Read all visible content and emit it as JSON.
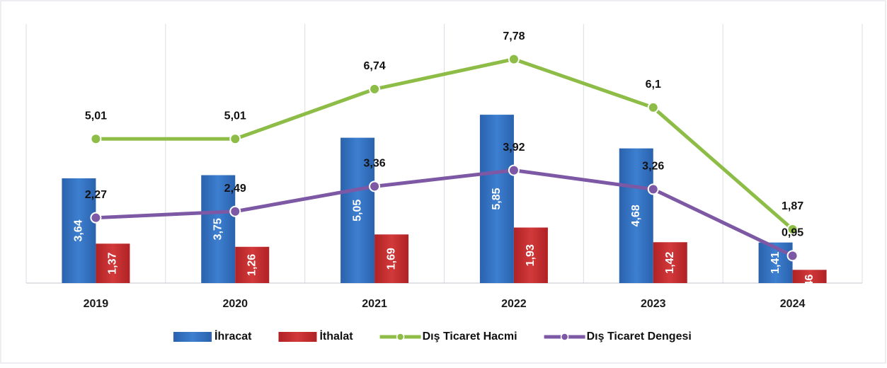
{
  "chart_data": {
    "type": "bar_line",
    "categories": [
      "2019",
      "2020",
      "2021",
      "2022",
      "2023",
      "2024"
    ],
    "ylim": [
      0,
      9
    ],
    "grid": true,
    "legend": "bottom",
    "series": [
      {
        "name": "İhracat",
        "type": "bar",
        "color": "#2f6ec0",
        "values": [
          3.64,
          3.75,
          5.05,
          5.85,
          4.68,
          1.41
        ],
        "value_labels": [
          "3,64",
          "3,75",
          "5,05",
          "5,85",
          "4,68",
          "1,41"
        ]
      },
      {
        "name": "İthalat",
        "type": "bar",
        "color": "#c4282b",
        "values": [
          1.37,
          1.26,
          1.69,
          1.93,
          1.42,
          0.46
        ],
        "value_labels": [
          "1,37",
          "1,26",
          "1,69",
          "1,93",
          "1,42",
          "0,46"
        ]
      },
      {
        "name": "Dış Ticaret Hacmi",
        "type": "line",
        "color": "#8dbd46",
        "values": [
          5.01,
          5.01,
          6.74,
          7.78,
          6.1,
          1.87
        ],
        "value_labels": [
          "5,01",
          "5,01",
          "6,74",
          "7,78",
          "6,1",
          "1,87"
        ]
      },
      {
        "name": "Dış Ticaret Dengesi",
        "type": "line",
        "color": "#7d58a4",
        "values": [
          2.27,
          2.49,
          3.36,
          3.92,
          3.26,
          0.95
        ],
        "value_labels": [
          "2,27",
          "2,49",
          "3,36",
          "3,92",
          "3,26",
          "0,95"
        ]
      }
    ]
  }
}
